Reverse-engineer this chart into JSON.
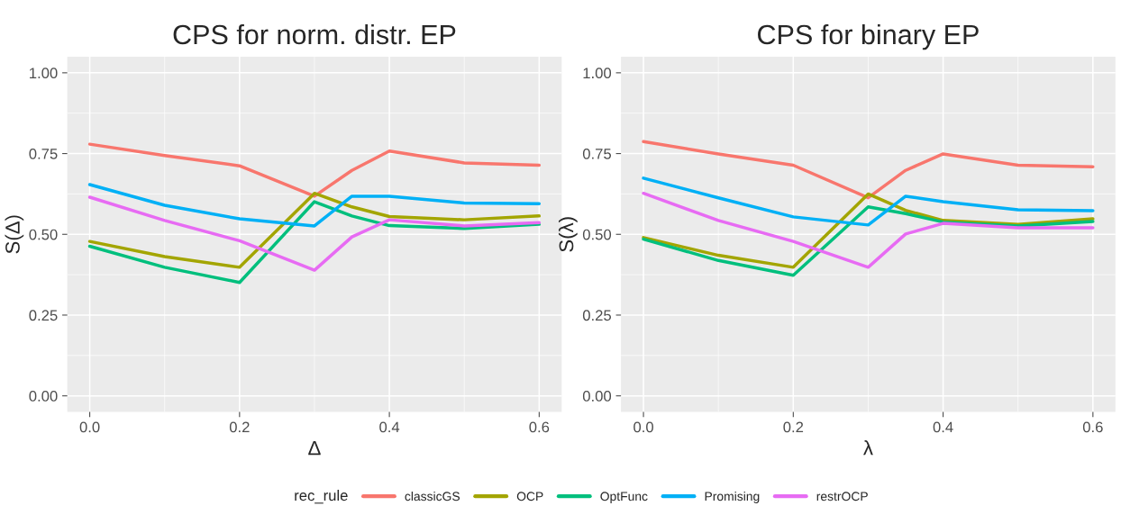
{
  "chart_data": [
    {
      "type": "line",
      "title": "CPS for norm. distr. EP",
      "xlabel": "Δ",
      "ylabel": "S(Δ)",
      "legend_title": "rec_rule",
      "legend": "bottom",
      "grid": true,
      "x": [
        0,
        0.1,
        0.2,
        0.3,
        0.35,
        0.4,
        0.5,
        0.6
      ],
      "xlim": [
        -0.03,
        0.63
      ],
      "xticks": [
        {
          "value": 0,
          "label": "0.0"
        },
        {
          "value": 0.2,
          "label": "0.2"
        },
        {
          "value": 0.4,
          "label": "0.4"
        },
        {
          "value": 0.6,
          "label": "0.6"
        }
      ],
      "ylim": [
        -0.05,
        1.05
      ],
      "yticks": [
        {
          "value": 0,
          "label": "0.00"
        },
        {
          "value": 0.25,
          "label": "0.25"
        },
        {
          "value": 0.5,
          "label": "0.50"
        },
        {
          "value": 0.75,
          "label": "0.75"
        },
        {
          "value": 1,
          "label": "1.00"
        }
      ],
      "series": [
        {
          "name": "classicGS",
          "color": "#f8766d",
          "values": [
            0.779,
            0.744,
            0.712,
            0.618,
            0.698,
            0.758,
            0.721,
            0.714
          ]
        },
        {
          "name": "OCP",
          "color": "#a3a500",
          "values": [
            0.478,
            0.431,
            0.398,
            0.627,
            0.585,
            0.555,
            0.545,
            0.557
          ]
        },
        {
          "name": "OptFunc",
          "color": "#00bf7d",
          "values": [
            0.463,
            0.398,
            0.351,
            0.601,
            0.557,
            0.527,
            0.518,
            0.531
          ]
        },
        {
          "name": "Promising",
          "color": "#00b0f6",
          "values": [
            0.654,
            0.59,
            0.548,
            0.526,
            0.618,
            0.618,
            0.597,
            0.595
          ]
        },
        {
          "name": "restrOCP",
          "color": "#e76bf3",
          "values": [
            0.615,
            0.543,
            0.48,
            0.389,
            0.492,
            0.545,
            0.526,
            0.536
          ]
        }
      ]
    },
    {
      "type": "line",
      "title": "CPS for binary EP",
      "xlabel": "λ",
      "ylabel": "S(λ)",
      "grid": true,
      "x": [
        0,
        0.1,
        0.2,
        0.3,
        0.35,
        0.4,
        0.5,
        0.6
      ],
      "xlim": [
        -0.03,
        0.63
      ],
      "xticks": [
        {
          "value": 0,
          "label": "0.0"
        },
        {
          "value": 0.2,
          "label": "0.2"
        },
        {
          "value": 0.4,
          "label": "0.4"
        },
        {
          "value": 0.6,
          "label": "0.6"
        }
      ],
      "ylim": [
        -0.05,
        1.05
      ],
      "yticks": [
        {
          "value": 0,
          "label": "0.00"
        },
        {
          "value": 0.25,
          "label": "0.25"
        },
        {
          "value": 0.5,
          "label": "0.50"
        },
        {
          "value": 0.75,
          "label": "0.75"
        },
        {
          "value": 1,
          "label": "1.00"
        }
      ],
      "series": [
        {
          "color": "#f8766d",
          "values": [
            0.787,
            0.749,
            0.714,
            0.613,
            0.698,
            0.749,
            0.714,
            0.709
          ]
        },
        {
          "color": "#a3a500",
          "values": [
            0.49,
            0.435,
            0.398,
            0.625,
            0.574,
            0.543,
            0.531,
            0.548
          ]
        },
        {
          "color": "#00bf7d",
          "values": [
            0.485,
            0.419,
            0.373,
            0.585,
            0.564,
            0.538,
            0.526,
            0.54
          ]
        },
        {
          "color": "#00b0f6",
          "values": [
            0.674,
            0.613,
            0.554,
            0.529,
            0.618,
            0.601,
            0.576,
            0.573
          ]
        },
        {
          "color": "#e76bf3",
          "values": [
            0.627,
            0.543,
            0.478,
            0.398,
            0.501,
            0.534,
            0.52,
            0.52
          ]
        }
      ]
    }
  ]
}
